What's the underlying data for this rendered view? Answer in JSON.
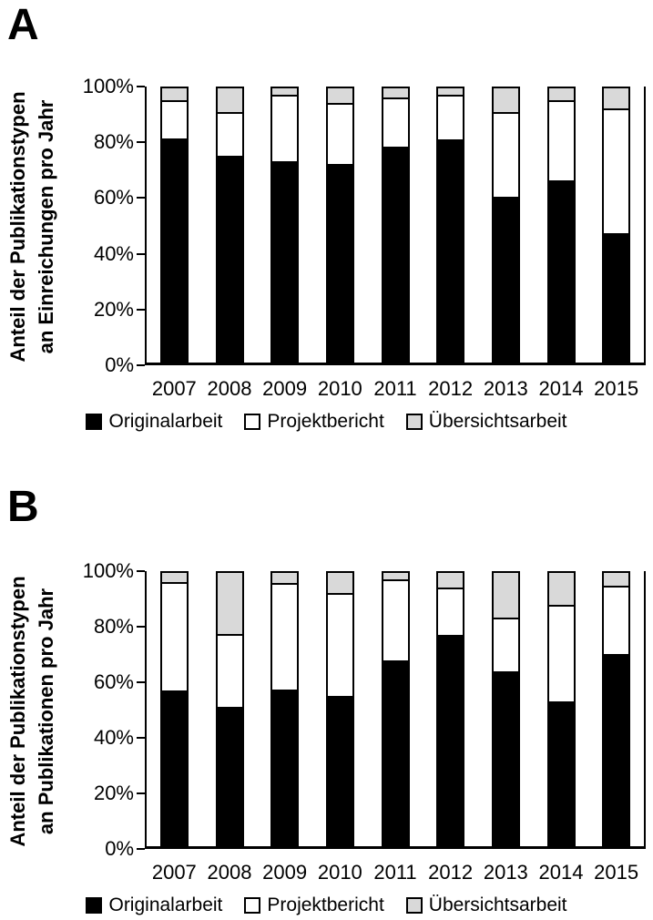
{
  "panels": [
    {
      "label": "A",
      "ylabel_line1": "Anteil der Publikationstypen",
      "ylabel_line2": "an Einreichungen pro Jahr"
    },
    {
      "label": "B",
      "ylabel_line1": "Anteil der Publikationstypen",
      "ylabel_line2": "an Publikationen pro Jahr"
    }
  ],
  "colors": {
    "originalarbeit": "#000000",
    "projektbericht": "#ffffff",
    "uebersichtsarbeit": "#d9d9d9",
    "axis": "#000000",
    "background": "#ffffff"
  },
  "chart_data": [
    {
      "type": "bar",
      "stacked": true,
      "percent": true,
      "panel": "A",
      "title": "",
      "xlabel": "",
      "ylabel": "Anteil der Publikationstypen an Einreichungen pro Jahr",
      "categories": [
        "2007",
        "2008",
        "2009",
        "2010",
        "2011",
        "2012",
        "2013",
        "2014",
        "2015"
      ],
      "yticks": [
        "0%",
        "20%",
        "40%",
        "60%",
        "80%",
        "100%"
      ],
      "ylim": [
        0,
        100
      ],
      "grid": false,
      "legend_position": "bottom",
      "series": [
        {
          "name": "Originalarbeit",
          "key": "originalarbeit",
          "color": "#000000",
          "values": [
            81,
            74.5,
            72.5,
            71.5,
            78,
            80.5,
            59.5,
            65.5,
            46
          ]
        },
        {
          "name": "Projektbericht",
          "key": "projektbericht",
          "color": "#ffffff",
          "values": [
            14,
            16,
            24.5,
            22.5,
            18,
            16.5,
            31,
            29.5,
            46
          ]
        },
        {
          "name": "Übersichtsarbeit",
          "key": "uebersichtsarbeit",
          "color": "#d9d9d9",
          "values": [
            5,
            9.5,
            3,
            6,
            4,
            3,
            9.5,
            5,
            8
          ]
        }
      ]
    },
    {
      "type": "bar",
      "stacked": true,
      "percent": true,
      "panel": "B",
      "title": "",
      "xlabel": "",
      "ylabel": "Anteil der Publikationstypen an Publikationen pro Jahr",
      "categories": [
        "2007",
        "2008",
        "2009",
        "2010",
        "2011",
        "2012",
        "2013",
        "2014",
        "2015"
      ],
      "yticks": [
        "0%",
        "20%",
        "40%",
        "60%",
        "80%",
        "100%"
      ],
      "ylim": [
        0,
        100
      ],
      "grid": false,
      "legend_position": "bottom",
      "series": [
        {
          "name": "Originalarbeit",
          "key": "originalarbeit",
          "color": "#000000",
          "values": [
            56,
            50,
            56.5,
            54,
            67,
            76.5,
            63,
            52,
            69.5
          ]
        },
        {
          "name": "Projektbericht",
          "key": "projektbericht",
          "color": "#ffffff",
          "values": [
            40,
            27,
            39,
            38,
            30,
            17.5,
            20,
            35.5,
            25
          ]
        },
        {
          "name": "Übersichtsarbeit",
          "key": "uebersichtsarbeit",
          "color": "#d9d9d9",
          "values": [
            4,
            23,
            4.5,
            8,
            3,
            6,
            17,
            12.5,
            5.5
          ]
        }
      ]
    }
  ]
}
